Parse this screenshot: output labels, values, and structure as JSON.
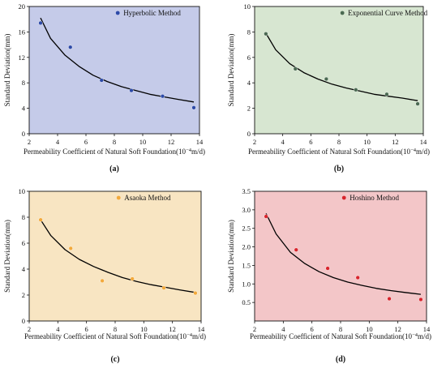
{
  "chart_data": [
    {
      "panel": "(a)",
      "type": "scatter",
      "background": "#c5cbe9",
      "point_color": "#2d4aa8",
      "xlabel": "Permeability Coefficient of Natural Soft Foundation(10",
      "xlabel_exp": "−4",
      "xlabel_unit": "m/d)",
      "ylabel": "Standard Deviation(mm)",
      "xlim": [
        2,
        14
      ],
      "ylim": [
        0,
        20
      ],
      "xticks": [
        "2",
        "4",
        "6",
        "8",
        "10",
        "12",
        "14"
      ],
      "yticks": [
        "0",
        "4",
        "8",
        "12",
        "16",
        "20"
      ],
      "series": [
        {
          "name": "Hyperbolic Method",
          "x": [
            2.8,
            4.9,
            7.1,
            9.2,
            11.4,
            13.6
          ],
          "y": [
            17.4,
            13.6,
            8.4,
            6.8,
            5.9,
            4.1
          ]
        }
      ],
      "fit": {
        "x": [
          2.8,
          3.5,
          4.5,
          5.5,
          6.5,
          7.5,
          8.5,
          9.5,
          10.5,
          11.5,
          12.5,
          13.6
        ],
        "y": [
          18.2,
          15.0,
          12.4,
          10.6,
          9.2,
          8.2,
          7.4,
          6.8,
          6.2,
          5.8,
          5.4,
          5.0
        ]
      },
      "legend_loc": "top-right"
    },
    {
      "panel": "(b)",
      "type": "scatter",
      "background": "#d7e6d1",
      "point_color": "#4b6a52",
      "xlabel": "Permeability Coefficient of Natural Soft Foundation(10",
      "xlabel_exp": "−4",
      "xlabel_unit": "m/d)",
      "ylabel": "Standard Deviation(mm)",
      "xlim": [
        2,
        14
      ],
      "ylim": [
        0,
        10
      ],
      "xticks": [
        "2",
        "4",
        "6",
        "8",
        "10",
        "12",
        "14"
      ],
      "yticks": [
        "0",
        "2",
        "4",
        "6",
        "8",
        "10"
      ],
      "series": [
        {
          "name": "Exponential Curve Method",
          "x": [
            2.8,
            4.9,
            7.1,
            9.2,
            11.4,
            13.6
          ],
          "y": [
            7.85,
            5.1,
            4.3,
            3.45,
            3.1,
            2.35
          ]
        }
      ],
      "fit": {
        "x": [
          2.8,
          3.5,
          4.5,
          5.5,
          6.5,
          7.5,
          8.5,
          9.5,
          10.5,
          11.5,
          12.5,
          13.6
        ],
        "y": [
          7.9,
          6.6,
          5.5,
          4.8,
          4.3,
          3.9,
          3.6,
          3.35,
          3.1,
          2.95,
          2.8,
          2.6
        ]
      },
      "legend_loc": "top-right"
    },
    {
      "panel": "(c)",
      "type": "scatter",
      "background": "#f8e5c2",
      "point_color": "#f2a93b",
      "xlabel": "Permeability Coefficient of Natural Soft Foundation(10",
      "xlabel_exp": "−4",
      "xlabel_unit": "m/d)",
      "ylabel": "Standard Deviation(mm)",
      "xlim": [
        2,
        14
      ],
      "ylim": [
        0,
        10
      ],
      "xticks": [
        "2",
        "4",
        "6",
        "8",
        "10",
        "12",
        "14"
      ],
      "yticks": [
        "0",
        "2",
        "4",
        "6",
        "8",
        "10"
      ],
      "series": [
        {
          "name": "Asaoka Method",
          "x": [
            2.8,
            4.9,
            7.1,
            9.2,
            11.4,
            13.6
          ],
          "y": [
            7.8,
            5.6,
            3.1,
            3.25,
            2.55,
            2.15
          ]
        }
      ],
      "fit": {
        "x": [
          2.8,
          3.5,
          4.5,
          5.5,
          6.5,
          7.5,
          8.5,
          9.5,
          10.5,
          11.5,
          12.5,
          13.6
        ],
        "y": [
          7.8,
          6.6,
          5.5,
          4.75,
          4.2,
          3.75,
          3.35,
          3.05,
          2.8,
          2.6,
          2.4,
          2.2
        ]
      },
      "legend_loc": "top-right"
    },
    {
      "panel": "(d)",
      "type": "scatter",
      "background": "#f3c6c8",
      "point_color": "#d8242c",
      "xlabel": "Permeability Coefficient of Natural Soft Foundation(10",
      "xlabel_exp": "−4",
      "xlabel_unit": "m/d)",
      "ylabel": "Standard Deviation(mm)",
      "xlim": [
        2,
        14
      ],
      "ylim": [
        0,
        3.5
      ],
      "xticks": [
        "2",
        "4",
        "6",
        "8",
        "10",
        "12",
        "14"
      ],
      "yticks": [
        "0.5",
        "1.0",
        "1.5",
        "2.0",
        "2.5",
        "3.0",
        "3.5"
      ],
      "series": [
        {
          "name": "Hoshino Method",
          "x": [
            2.8,
            4.9,
            7.1,
            9.2,
            11.4,
            13.6
          ],
          "y": [
            2.82,
            1.92,
            1.42,
            1.17,
            0.6,
            0.58
          ]
        }
      ],
      "fit": {
        "x": [
          2.8,
          3.5,
          4.5,
          5.5,
          6.5,
          7.5,
          8.5,
          9.5,
          10.5,
          11.5,
          12.5,
          13.6
        ],
        "y": [
          2.9,
          2.35,
          1.85,
          1.55,
          1.33,
          1.17,
          1.05,
          0.96,
          0.88,
          0.82,
          0.77,
          0.72
        ]
      },
      "legend_loc": "top-right"
    }
  ]
}
